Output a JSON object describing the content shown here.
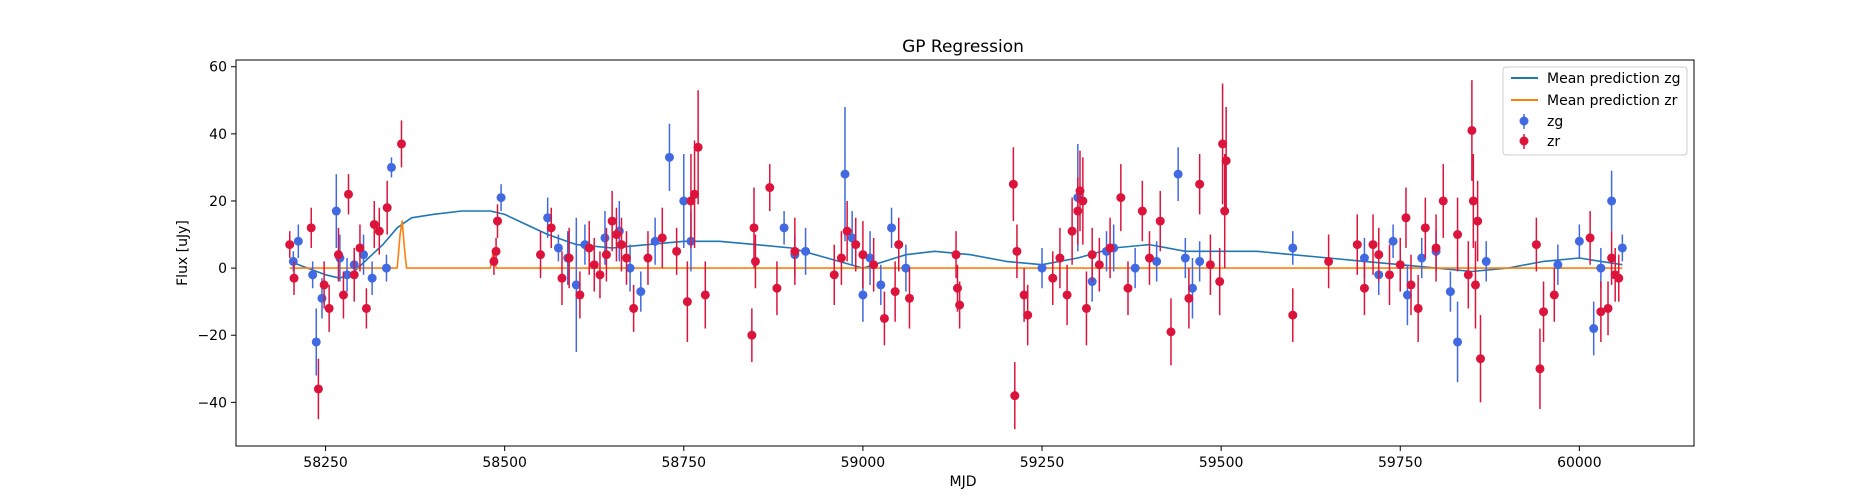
{
  "chart_data": {
    "type": "scatter",
    "title": "GP Regression",
    "xlabel": "MJD",
    "ylabel": "Flux [uJy]",
    "xlim": [
      58125,
      60160
    ],
    "ylim": [
      -53,
      62
    ],
    "xticks": [
      58250,
      58500,
      58750,
      59000,
      59250,
      59500,
      59750,
      60000
    ],
    "yticks": [
      -40,
      -20,
      0,
      20,
      40,
      60
    ],
    "grid": false,
    "legend_position": "top-right",
    "legend": [
      "Mean prediction zg",
      "Mean prediction zr",
      "zg",
      "zr"
    ],
    "colors": {
      "zg_line": "#1f77b4",
      "zr_line": "#ff7f0e",
      "zg_points": "#4169e1",
      "zr_points": "#dc143c"
    },
    "series": [
      {
        "name": "Mean prediction zg",
        "kind": "line",
        "x": [
          58200,
          58225,
          58250,
          58270,
          58290,
          58310,
          58330,
          58350,
          58370,
          58400,
          58440,
          58480,
          58500,
          58530,
          58560,
          58600,
          58650,
          58700,
          58750,
          58800,
          58850,
          58900,
          58950,
          59000,
          59030,
          59060,
          59100,
          59150,
          59200,
          59250,
          59300,
          59350,
          59400,
          59450,
          59500,
          59550,
          59600,
          59650,
          59700,
          59750,
          59800,
          59850,
          59900,
          59950,
          60000,
          60030,
          60060
        ],
        "y": [
          2,
          0,
          -2,
          -3,
          -1,
          3,
          7,
          12,
          15,
          16,
          17,
          17,
          16,
          13,
          10,
          7,
          6,
          7,
          8,
          8,
          7,
          6,
          3,
          0,
          2,
          4,
          5,
          4,
          2,
          1,
          3,
          6,
          7,
          5,
          5,
          5,
          4,
          3,
          2,
          1,
          0,
          -1,
          0,
          2,
          3,
          2,
          1
        ]
      },
      {
        "name": "Mean prediction zr",
        "kind": "line",
        "x": [
          58200,
          58300,
          58350,
          58354,
          58357,
          58360,
          58363,
          58400,
          58480,
          58484,
          58488,
          58600,
          58700,
          58900,
          59200,
          59300,
          59500,
          60060
        ],
        "y": [
          0,
          0,
          0,
          10,
          14,
          6,
          0,
          0,
          0,
          5,
          0,
          0,
          0,
          0,
          0,
          0,
          0,
          0
        ]
      },
      {
        "name": "zg",
        "kind": "errorbar",
        "x": [
          58205,
          58212,
          58232,
          58237,
          58245,
          58265,
          58270,
          58280,
          58290,
          58303,
          58315,
          58335,
          58342,
          58495,
          58560,
          58575,
          58588,
          58600,
          58612,
          58640,
          58660,
          58675,
          58690,
          58710,
          58730,
          58750,
          58760,
          58890,
          58905,
          58920,
          58975,
          58985,
          59000,
          59010,
          59025,
          59040,
          59060,
          59250,
          59300,
          59320,
          59340,
          59350,
          59380,
          59410,
          59440,
          59450,
          59460,
          59470,
          59600,
          59700,
          59720,
          59740,
          59760,
          59780,
          59800,
          59820,
          59830,
          59870,
          59970,
          60000,
          60020,
          60030,
          60045,
          60060
        ],
        "y": [
          2,
          8,
          -2,
          -22,
          -9,
          17,
          3,
          -2,
          1,
          4,
          -3,
          0,
          30,
          21,
          15,
          6,
          3,
          -5,
          7,
          9,
          11,
          0,
          -7,
          8,
          33,
          20,
          8,
          12,
          4,
          5,
          28,
          9,
          -8,
          3,
          -5,
          12,
          0,
          0,
          21,
          -4,
          5,
          6,
          0,
          2,
          28,
          3,
          -6,
          2,
          6,
          3,
          -2,
          8,
          -8,
          3,
          5,
          -7,
          -22,
          2,
          1,
          8,
          -18,
          0,
          20,
          6
        ],
        "err": [
          3,
          5,
          4,
          10,
          6,
          11,
          7,
          5,
          4,
          6,
          5,
          4,
          3,
          4,
          6,
          4,
          8,
          20,
          6,
          8,
          9,
          7,
          6,
          7,
          10,
          14,
          9,
          5,
          6,
          7,
          20,
          8,
          8,
          8,
          6,
          6,
          7,
          6,
          16,
          6,
          6,
          7,
          6,
          6,
          8,
          6,
          9,
          6,
          5,
          6,
          6,
          5,
          9,
          6,
          6,
          6,
          12,
          6,
          6,
          5,
          8,
          6,
          9,
          4
        ]
      },
      {
        "name": "zr",
        "kind": "errorbar",
        "x": [
          58200,
          58206,
          58230,
          58240,
          58248,
          58255,
          58268,
          58275,
          58282,
          58290,
          58298,
          58307,
          58318,
          58325,
          58336,
          58356,
          58485,
          58488,
          58490,
          58550,
          58565,
          58580,
          58590,
          58605,
          58618,
          58625,
          58633,
          58642,
          58650,
          58656,
          58663,
          58670,
          58680,
          58700,
          58720,
          58740,
          58755,
          58760,
          58765,
          58770,
          58780,
          58845,
          58848,
          58850,
          58870,
          58880,
          58905,
          58960,
          58970,
          58978,
          58990,
          59000,
          59015,
          59030,
          59045,
          59050,
          59065,
          59130,
          59132,
          59135,
          59210,
          59212,
          59215,
          59225,
          59230,
          59265,
          59275,
          59285,
          59292,
          59300,
          59303,
          59307,
          59312,
          59320,
          59330,
          59345,
          59360,
          59370,
          59390,
          59400,
          59415,
          59430,
          59455,
          59470,
          59485,
          59498,
          59502,
          59505,
          59507,
          59600,
          59650,
          59690,
          59700,
          59712,
          59720,
          59735,
          59750,
          59758,
          59765,
          59775,
          59785,
          59800,
          59810,
          59830,
          59845,
          59850,
          59852,
          59855,
          59858,
          59862,
          59940,
          59945,
          59950,
          59965,
          60015,
          60030,
          60040,
          60045,
          60050,
          60055
        ],
        "y": [
          7,
          -3,
          12,
          -36,
          -5,
          -12,
          4,
          -8,
          22,
          -2,
          6,
          -12,
          13,
          11,
          18,
          37,
          2,
          5,
          14,
          4,
          12,
          -3,
          3,
          -8,
          6,
          1,
          -2,
          4,
          14,
          10,
          7,
          3,
          -12,
          3,
          9,
          5,
          -10,
          20,
          22,
          36,
          -8,
          -20,
          12,
          2,
          24,
          -6,
          5,
          -2,
          3,
          11,
          7,
          4,
          1,
          -15,
          -7,
          7,
          -9,
          4,
          -6,
          -11,
          25,
          -38,
          5,
          -8,
          -14,
          -3,
          3,
          -8,
          11,
          17,
          23,
          20,
          -12,
          4,
          1,
          6,
          21,
          -6,
          17,
          3,
          14,
          -19,
          -9,
          25,
          1,
          -4,
          37,
          17,
          32,
          -14,
          2,
          7,
          -6,
          7,
          4,
          -2,
          1,
          15,
          -5,
          -12,
          12,
          6,
          20,
          10,
          -2,
          41,
          20,
          -5,
          14,
          -27,
          7,
          -30,
          -13,
          -8,
          9,
          -13,
          -12,
          3,
          -2,
          -3
        ],
        "err": [
          4,
          5,
          6,
          9,
          7,
          7,
          8,
          7,
          6,
          8,
          7,
          6,
          7,
          7,
          8,
          7,
          4,
          4,
          5,
          7,
          6,
          8,
          9,
          7,
          8,
          8,
          7,
          8,
          9,
          8,
          8,
          8,
          7,
          8,
          9,
          7,
          12,
          14,
          16,
          17,
          10,
          8,
          12,
          8,
          7,
          8,
          10,
          9,
          8,
          9,
          8,
          10,
          8,
          8,
          9,
          8,
          9,
          7,
          7,
          7,
          11,
          10,
          8,
          8,
          9,
          8,
          9,
          9,
          10,
          10,
          12,
          13,
          11,
          8,
          8,
          9,
          10,
          8,
          9,
          8,
          9,
          10,
          9,
          9,
          9,
          10,
          18,
          17,
          16,
          8,
          8,
          9,
          8,
          9,
          8,
          9,
          8,
          9,
          9,
          10,
          9,
          10,
          11,
          11,
          10,
          15,
          14,
          13,
          12,
          13,
          8,
          12,
          9,
          8,
          8,
          9,
          8,
          8,
          8,
          7
        ]
      }
    ]
  }
}
